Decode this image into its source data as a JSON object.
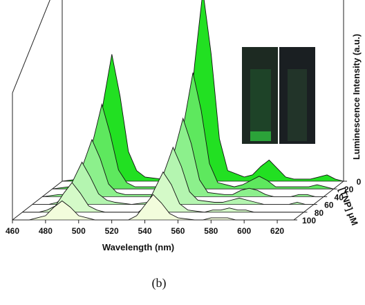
{
  "chart_data": {
    "type": "waterfall",
    "caption": "(b)",
    "x_label": "Wavelength (nm)",
    "y_label": "Luminescence Intensity (a.u.)",
    "z_label": "[TNP] μM",
    "xlim": [
      460,
      630
    ],
    "xticks": [
      460,
      480,
      500,
      520,
      540,
      560,
      580,
      600,
      620
    ],
    "ylim": [
      0,
      100
    ],
    "zlim": [
      0,
      100
    ],
    "zticks": [
      0,
      20,
      40,
      60,
      80,
      100
    ],
    "x": [
      460,
      470,
      475,
      480,
      485,
      490,
      495,
      500,
      505,
      510,
      520,
      530,
      535,
      540,
      545,
      550,
      555,
      560,
      570,
      575,
      580,
      585,
      590,
      595,
      600,
      610,
      615,
      620,
      625,
      630
    ],
    "series": [
      {
        "z": 0,
        "color": "#22e022",
        "values": [
          0,
          1,
          3,
          12,
          38,
          60,
          40,
          14,
          5,
          2,
          1,
          2,
          14,
          55,
          90,
          60,
          20,
          5,
          2,
          3,
          7,
          10,
          6,
          2,
          1,
          1,
          2,
          3,
          1,
          0
        ]
      },
      {
        "z": 20,
        "color": "#5ee85e",
        "values": [
          0,
          1,
          2,
          7,
          24,
          40,
          26,
          9,
          3,
          1,
          1,
          1,
          9,
          33,
          55,
          37,
          12,
          3,
          1,
          2,
          4,
          6,
          4,
          1,
          1,
          1,
          1,
          2,
          1,
          0
        ]
      },
      {
        "z": 40,
        "color": "#8cf08c",
        "values": [
          0,
          1,
          1,
          5,
          16,
          27,
          18,
          6,
          2,
          1,
          1,
          1,
          6,
          22,
          37,
          25,
          8,
          2,
          1,
          1,
          3,
          4,
          3,
          1,
          0,
          0,
          1,
          1,
          0,
          0
        ]
      },
      {
        "z": 60,
        "color": "#b4f5b0",
        "values": [
          0,
          0,
          1,
          4,
          12,
          20,
          13,
          5,
          2,
          1,
          0,
          1,
          4,
          16,
          27,
          18,
          6,
          2,
          1,
          1,
          2,
          3,
          2,
          1,
          0,
          0,
          0,
          1,
          0,
          0
        ]
      },
      {
        "z": 80,
        "color": "#d4fac8",
        "values": [
          0,
          0,
          1,
          3,
          9,
          14,
          9,
          3,
          1,
          0,
          0,
          0,
          3,
          11,
          19,
          13,
          4,
          1,
          0,
          1,
          1,
          2,
          1,
          1,
          0,
          0,
          0,
          0,
          0,
          0
        ]
      },
      {
        "z": 100,
        "color": "#f2fcdc",
        "values": [
          0,
          0,
          1,
          2,
          6,
          9,
          6,
          2,
          1,
          0,
          0,
          0,
          2,
          7,
          12,
          8,
          3,
          1,
          0,
          0,
          1,
          1,
          1,
          0,
          0,
          0,
          0,
          0,
          0,
          0
        ]
      }
    ]
  }
}
